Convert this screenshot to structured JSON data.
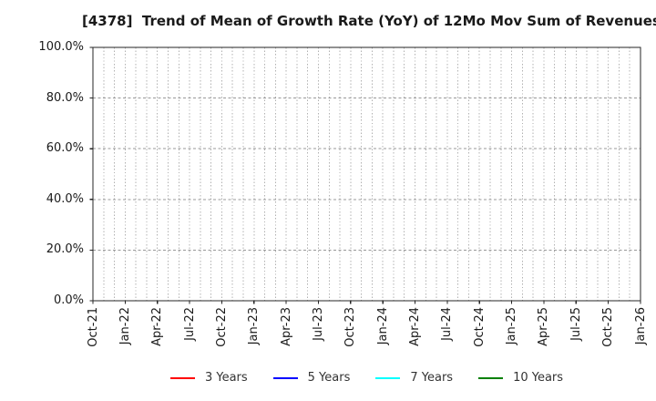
{
  "chart_data": {
    "type": "line",
    "title": "[4378]  Trend of Mean of Growth Rate (YoY) of 12Mo Mov Sum of Revenues",
    "xlabel": "",
    "ylabel": "",
    "ylim": [
      0,
      100
    ],
    "y_tick_labels": [
      "0.0%",
      "20.0%",
      "40.0%",
      "60.0%",
      "80.0%",
      "100.0%"
    ],
    "x_tick_labels": [
      "Oct-21",
      "Jan-22",
      "Apr-22",
      "Jul-22",
      "Oct-22",
      "Jan-23",
      "Apr-23",
      "Jul-23",
      "Oct-23",
      "Jan-24",
      "Apr-24",
      "Jul-24",
      "Oct-24",
      "Jan-25",
      "Apr-25",
      "Jul-25",
      "Oct-25",
      "Jan-26"
    ],
    "x_minor_gridlines_per_interval": 3,
    "grid": true,
    "grid_style": "dotted",
    "legend_position": "bottom",
    "series": [
      {
        "name": "3 Years",
        "color": "#ff0000",
        "values": []
      },
      {
        "name": "5 Years",
        "color": "#0000ff",
        "values": []
      },
      {
        "name": "7 Years",
        "color": "#00ffff",
        "values": []
      },
      {
        "name": "10 Years",
        "color": "#008000",
        "values": []
      }
    ],
    "plot_is_empty": true,
    "colors": {
      "axis": "#262626",
      "grid_minor": "#b0b0b0",
      "grid_major": "#999999",
      "text": "#1a1a1a"
    }
  }
}
